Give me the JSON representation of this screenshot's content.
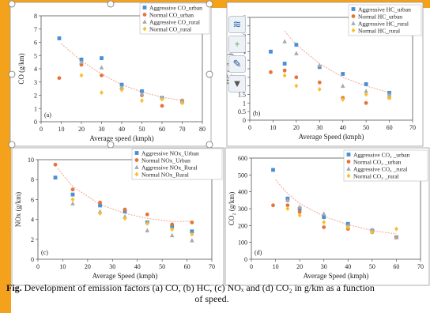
{
  "caption": {
    "fig": "Fig.",
    "line1": " Development of emission factors (a) CO, (b) HC, (c) NOₓ and (d) CO₂ in g/km as a function",
    "line2": "of speed."
  },
  "toolbar": [
    {
      "icon": "layout-icon",
      "glyph": "≋",
      "color": "#2b6cb0"
    },
    {
      "icon": "plus-icon",
      "glyph": "+",
      "color": "#2e9e44"
    },
    {
      "icon": "brush-icon",
      "glyph": "✎",
      "color": "#1f4e8c"
    },
    {
      "icon": "filter-icon",
      "glyph": "▼",
      "color": "#555555"
    }
  ],
  "colors": {
    "aggressive_urban": "#4a8fd6",
    "normal_urban": "#e8733a",
    "aggressive_rural": "#a9a9a9",
    "normal_rural": "#f6c02a",
    "trend": "#f4a48a"
  },
  "chart_data": [
    {
      "type": "scatter",
      "panel_label": "(a)",
      "xlabel": "Average speed (kmph)",
      "ylabel": "CO (g/km)",
      "xlim": [
        0,
        80
      ],
      "ylim": [
        0,
        8
      ],
      "xticks": [
        0,
        10,
        20,
        30,
        40,
        50,
        60,
        70,
        80
      ],
      "yticks": [
        0,
        1,
        2,
        3,
        4,
        5,
        6,
        7,
        8
      ],
      "series": [
        {
          "name": "Aggressive CO_urban",
          "marker": "square",
          "color": "#4a8fd6",
          "points": [
            [
              9,
              6.3
            ],
            [
              20,
              4.7
            ],
            [
              30,
              4.8
            ],
            [
              40,
              2.8
            ],
            [
              50,
              2.3
            ],
            [
              60,
              1.8
            ],
            [
              70,
              1.5
            ]
          ]
        },
        {
          "name": "Normal CO_urban",
          "marker": "circle",
          "color": "#e8733a",
          "points": [
            [
              9,
              3.3
            ],
            [
              20,
              4.3
            ],
            [
              30,
              3.5
            ],
            [
              40,
              2.5
            ],
            [
              50,
              2.0
            ],
            [
              60,
              1.2
            ],
            [
              70,
              1.6
            ]
          ]
        },
        {
          "name": "Aggressive CO_rural",
          "marker": "triangle",
          "color": "#a9a9a9",
          "points": [
            [
              20,
              4.5
            ],
            [
              30,
              4.1
            ],
            [
              40,
              2.6
            ],
            [
              50,
              2.1
            ],
            [
              60,
              1.8
            ],
            [
              70,
              1.6
            ]
          ]
        },
        {
          "name": "Normal CO_rural",
          "marker": "diamond",
          "color": "#f6c02a",
          "points": [
            [
              20,
              3.5
            ],
            [
              30,
              2.2
            ],
            [
              40,
              2.4
            ],
            [
              50,
              1.6
            ],
            [
              60,
              1.7
            ],
            [
              70,
              1.4
            ]
          ]
        }
      ],
      "trend": [
        [
          10,
          5.9
        ],
        [
          20,
          4.6
        ],
        [
          30,
          3.6
        ],
        [
          40,
          2.8
        ],
        [
          50,
          2.25
        ],
        [
          60,
          1.85
        ],
        [
          70,
          1.6
        ]
      ]
    },
    {
      "type": "scatter",
      "panel_label": "(b)",
      "xlabel": "Average Speed (kmph)",
      "ylabel": "HC (g/km)",
      "xlim": [
        0,
        70
      ],
      "ylim": [
        0,
        6
      ],
      "xticks": [
        0,
        10,
        20,
        30,
        40,
        50,
        60,
        70
      ],
      "yticks": [
        0,
        0.5,
        1,
        1.5,
        2,
        2.5,
        3,
        3.5,
        4,
        4.5,
        5,
        5.5,
        6
      ],
      "series": [
        {
          "name": "Aggressive HC_urban",
          "marker": "square",
          "color": "#4a8fd6",
          "points": [
            [
              9,
              4.0
            ],
            [
              15,
              3.3
            ],
            [
              20,
              4.4
            ],
            [
              30,
              3.1
            ],
            [
              40,
              2.7
            ],
            [
              50,
              2.1
            ],
            [
              60,
              1.6
            ]
          ]
        },
        {
          "name": "Normal HC_urban",
          "marker": "circle",
          "color": "#e8733a",
          "points": [
            [
              9,
              2.8
            ],
            [
              15,
              2.9
            ],
            [
              20,
              2.5
            ],
            [
              30,
              2.2
            ],
            [
              40,
              1.3
            ],
            [
              50,
              1.0
            ],
            [
              60,
              1.3
            ]
          ]
        },
        {
          "name": "Aggressive HC_rural",
          "marker": "triangle",
          "color": "#a9a9a9",
          "points": [
            [
              15,
              4.6
            ],
            [
              20,
              3.9
            ],
            [
              30,
              3.2
            ],
            [
              40,
              2.0
            ],
            [
              50,
              1.7
            ],
            [
              60,
              1.5
            ]
          ]
        },
        {
          "name": "Normal HC_rural",
          "marker": "diamond",
          "color": "#f6c02a",
          "points": [
            [
              15,
              2.6
            ],
            [
              20,
              2.0
            ],
            [
              30,
              1.8
            ],
            [
              40,
              1.2
            ],
            [
              50,
              1.5
            ],
            [
              60,
              1.3
            ]
          ]
        }
      ],
      "trend": [
        [
          15,
          5.2
        ],
        [
          20,
          4.4
        ],
        [
          30,
          3.3
        ],
        [
          40,
          2.5
        ],
        [
          50,
          2.0
        ],
        [
          60,
          1.6
        ]
      ]
    },
    {
      "type": "scatter",
      "panel_label": "(c)",
      "xlabel": "Average Speed (kmph)",
      "ylabel": "NOx (g/km)",
      "xlim": [
        0,
        70
      ],
      "ylim": [
        0,
        10
      ],
      "xticks": [
        0,
        10,
        20,
        30,
        40,
        50,
        60,
        70
      ],
      "yticks": [
        0,
        2,
        4,
        6,
        8,
        10
      ],
      "series": [
        {
          "name": "Aggressive NOx_Urban",
          "marker": "square",
          "color": "#4a8fd6",
          "points": [
            [
              7,
              8.2
            ],
            [
              14,
              6.5
            ],
            [
              25,
              5.4
            ],
            [
              35,
              4.8
            ],
            [
              44,
              3.7
            ],
            [
              54,
              3.3
            ],
            [
              62,
              2.8
            ]
          ]
        },
        {
          "name": "Normal NOx_Urban",
          "marker": "circle",
          "color": "#e8733a",
          "points": [
            [
              7,
              9.5
            ],
            [
              14,
              7.0
            ],
            [
              25,
              5.7
            ],
            [
              35,
              5.0
            ],
            [
              44,
              4.5
            ],
            [
              54,
              3.5
            ],
            [
              62,
              3.7
            ]
          ]
        },
        {
          "name": "Aggressive NOx_Rural",
          "marker": "triangle",
          "color": "#a9a9a9",
          "points": [
            [
              14,
              5.6
            ],
            [
              25,
              4.8
            ],
            [
              35,
              4.3
            ],
            [
              44,
              2.9
            ],
            [
              54,
              2.4
            ],
            [
              62,
              1.9
            ]
          ]
        },
        {
          "name": "Normal NOx_Rural",
          "marker": "diamond",
          "color": "#f6c02a",
          "points": [
            [
              14,
              6.0
            ],
            [
              25,
              4.6
            ],
            [
              35,
              4.1
            ],
            [
              44,
              3.6
            ],
            [
              54,
              3.0
            ],
            [
              62,
              2.5
            ]
          ]
        }
      ],
      "trend": [
        [
          8,
          9.1
        ],
        [
          14,
          7.3
        ],
        [
          25,
          5.5
        ],
        [
          35,
          4.6
        ],
        [
          44,
          4.1
        ],
        [
          54,
          3.8
        ],
        [
          62,
          3.8
        ]
      ]
    },
    {
      "type": "scatter",
      "panel_label": "(d)",
      "xlabel": "Average Speed (kmph)",
      "ylabel": "CO₂ (g/km)",
      "xlim": [
        0,
        70
      ],
      "ylim": [
        0,
        600
      ],
      "xticks": [
        0,
        10,
        20,
        30,
        40,
        50,
        60,
        70
      ],
      "yticks": [
        0,
        100,
        200,
        300,
        400,
        500,
        600
      ],
      "series": [
        {
          "name": "Aggressive CO₂ _urban",
          "marker": "square",
          "color": "#4a8fd6",
          "points": [
            [
              9,
              530
            ],
            [
              15,
              360
            ],
            [
              20,
              300
            ],
            [
              30,
              250
            ],
            [
              40,
              210
            ],
            [
              50,
              170
            ],
            [
              60,
              130
            ]
          ]
        },
        {
          "name": "Normal CO₂ _urban",
          "marker": "circle",
          "color": "#e8733a",
          "points": [
            [
              9,
              320
            ],
            [
              15,
              320
            ],
            [
              20,
              280
            ],
            [
              30,
              190
            ],
            [
              40,
              180
            ],
            [
              50,
              160
            ],
            [
              60,
              130
            ]
          ]
        },
        {
          "name": "Aggressive CO₂ _rural",
          "marker": "triangle",
          "color": "#a9a9a9",
          "points": [
            [
              15,
              350
            ],
            [
              20,
              310
            ],
            [
              30,
              270
            ],
            [
              40,
              200
            ],
            [
              50,
              175
            ],
            [
              60,
              130
            ]
          ]
        },
        {
          "name": "Normal CO₂ _rural",
          "marker": "diamond",
          "color": "#f6c02a",
          "points": [
            [
              15,
              300
            ],
            [
              20,
              260
            ],
            [
              30,
              220
            ],
            [
              40,
              190
            ],
            [
              50,
              160
            ],
            [
              60,
              180
            ]
          ]
        }
      ],
      "trend": [
        [
          10,
          470
        ],
        [
          15,
          390
        ],
        [
          20,
          330
        ],
        [
          30,
          255
        ],
        [
          40,
          205
        ],
        [
          50,
          170
        ],
        [
          60,
          150
        ]
      ]
    }
  ]
}
